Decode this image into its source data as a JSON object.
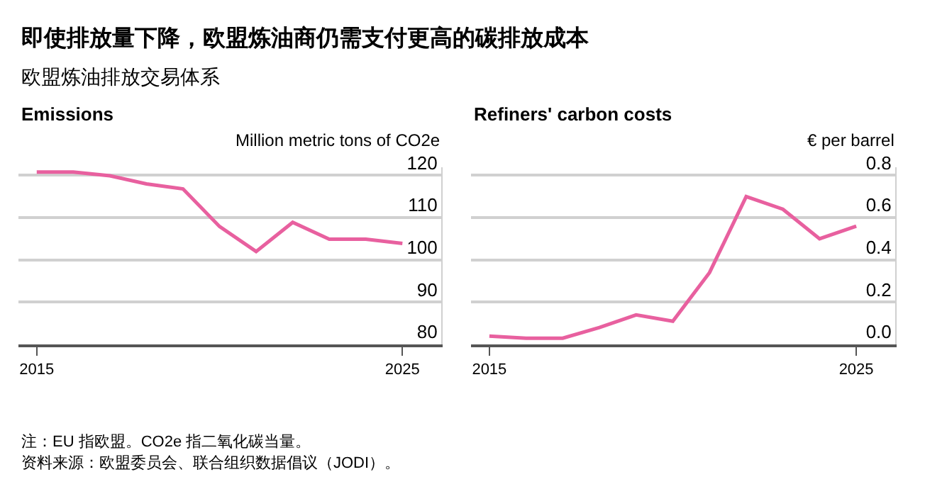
{
  "chart_data": [
    {
      "type": "line",
      "title": "Emissions",
      "ylabel": "Million metric tons of CO2e",
      "annotations": [
        "即使排放量下降，欧盟炼油商仍需支付更高的碳排放成本",
        "欧盟炼油排放交易体系",
        "注：EU 指欧盟。CO2e 指二氧化碳当量。",
        "资料来源：欧盟委员会、联合组织数据倡议（JODI）。"
      ],
      "x": [
        2015,
        2016,
        2017,
        2018,
        2019,
        2020,
        2021,
        2022,
        2023,
        2024,
        2025
      ],
      "series": [
        {
          "color": "#e8609f",
          "values": [
            120.8,
            120.8,
            119.9,
            118,
            116.8,
            107.9,
            102,
            108.9,
            104.9,
            104.9,
            103.9
          ]
        }
      ],
      "xlim": [
        2014.5,
        2026.1
      ],
      "xticks": [
        2015,
        2025
      ],
      "ylim": [
        80,
        122
      ],
      "yticks": [
        80,
        90,
        100,
        110,
        120
      ],
      "grid": "y",
      "marker": "none",
      "line_style": "solid"
    },
    {
      "type": "line",
      "title": "Refiners' carbon costs",
      "ylabel": "€ per barrel",
      "x": [
        2015,
        2016,
        2017,
        2018,
        2019,
        2020,
        2021,
        2022,
        2023,
        2024,
        2025
      ],
      "series": [
        {
          "color": "#e8609f",
          "values": [
            0.04,
            0.03,
            0.03,
            0.08,
            0.14,
            0.11,
            0.34,
            0.7,
            0.64,
            0.5,
            0.56
          ]
        }
      ],
      "xlim": [
        2014.5,
        2026.1
      ],
      "xticks": [
        2015,
        2025
      ],
      "ylim": [
        0,
        0.84
      ],
      "yticks": [
        {
          "value": 0,
          "label": "0.0"
        },
        0.2,
        0.4,
        0.6,
        0.8
      ],
      "grid": "y",
      "marker": "none",
      "line_style": "solid"
    }
  ]
}
